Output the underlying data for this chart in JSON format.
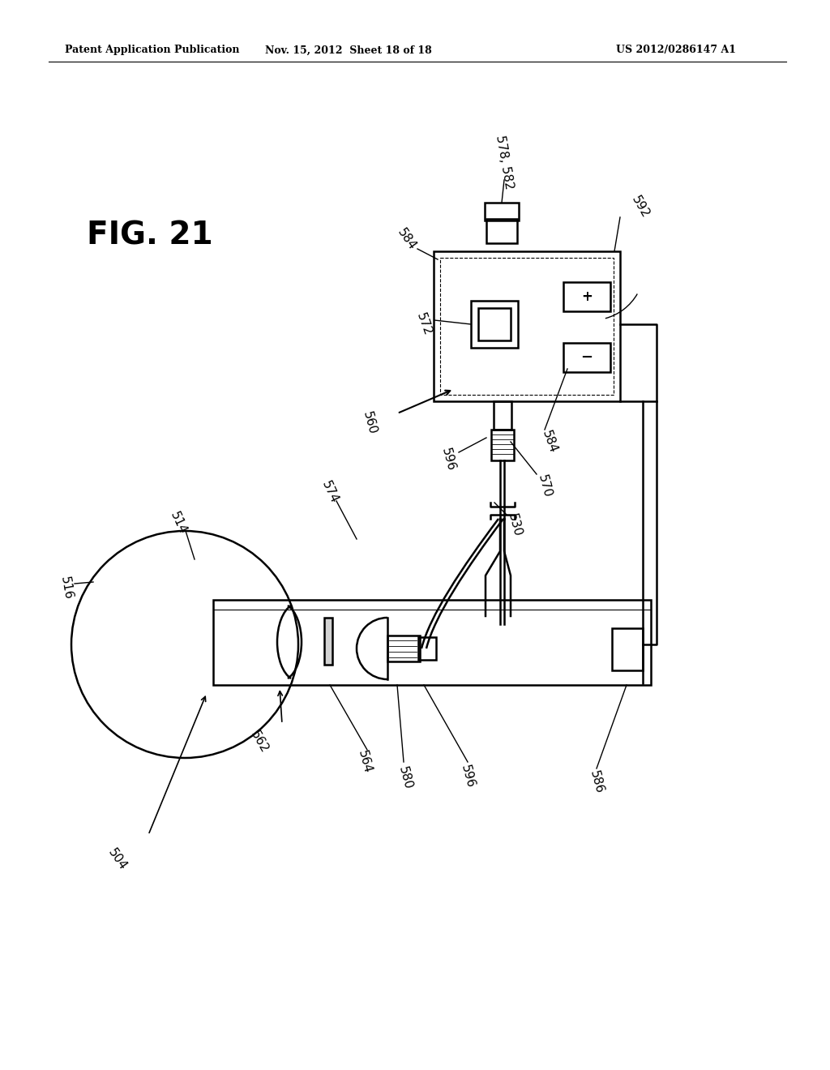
{
  "bg_color": "#ffffff",
  "header_left": "Patent Application Publication",
  "header_mid": "Nov. 15, 2012  Sheet 18 of 18",
  "header_right": "US 2012/0286147 A1",
  "fig_label": "FIG. 21"
}
